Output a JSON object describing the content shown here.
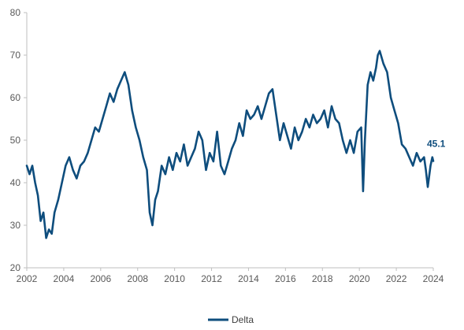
{
  "chart_data": {
    "type": "line",
    "title": "",
    "xlabel": "",
    "ylabel": "",
    "xlim": [
      2002,
      2024
    ],
    "ylim": [
      20,
      80
    ],
    "x_ticks": [
      "2002",
      "2004",
      "2006",
      "2008",
      "2010",
      "2012",
      "2014",
      "2016",
      "2018",
      "2020",
      "2022",
      "2024"
    ],
    "y_ticks": [
      "20",
      "30",
      "40",
      "50",
      "60",
      "70",
      "80"
    ],
    "grid": false,
    "legend": {
      "position": "bottom",
      "entries": [
        "Delta"
      ]
    },
    "end_label": "45.1",
    "series": [
      {
        "name": "Delta",
        "color": "#0e4d7d",
        "x": [
          2002.0,
          2002.15,
          2002.3,
          2002.45,
          2002.6,
          2002.75,
          2002.9,
          2003.05,
          2003.2,
          2003.35,
          2003.5,
          2003.7,
          2003.9,
          2004.1,
          2004.3,
          2004.5,
          2004.7,
          2004.9,
          2005.1,
          2005.3,
          2005.5,
          2005.7,
          2005.9,
          2006.1,
          2006.3,
          2006.5,
          2006.7,
          2006.9,
          2007.1,
          2007.3,
          2007.5,
          2007.7,
          2007.9,
          2008.1,
          2008.3,
          2008.5,
          2008.65,
          2008.8,
          2008.95,
          2009.1,
          2009.3,
          2009.5,
          2009.7,
          2009.9,
          2010.1,
          2010.3,
          2010.5,
          2010.7,
          2010.9,
          2011.1,
          2011.3,
          2011.5,
          2011.7,
          2011.9,
          2012.1,
          2012.3,
          2012.5,
          2012.7,
          2012.9,
          2013.1,
          2013.3,
          2013.5,
          2013.7,
          2013.9,
          2014.1,
          2014.3,
          2014.5,
          2014.7,
          2014.9,
          2015.1,
          2015.3,
          2015.5,
          2015.7,
          2015.9,
          2016.1,
          2016.3,
          2016.5,
          2016.7,
          2016.9,
          2017.1,
          2017.3,
          2017.5,
          2017.7,
          2017.9,
          2018.1,
          2018.3,
          2018.5,
          2018.7,
          2018.9,
          2019.1,
          2019.3,
          2019.5,
          2019.7,
          2019.9,
          2020.1,
          2020.2,
          2020.3,
          2020.45,
          2020.6,
          2020.75,
          2020.9,
          2021.0,
          2021.1,
          2021.3,
          2021.5,
          2021.7,
          2021.9,
          2022.1,
          2022.3,
          2022.5,
          2022.7,
          2022.9,
          2023.1,
          2023.3,
          2023.5,
          2023.6,
          2023.7,
          2023.85,
          2023.95,
          2024.0
        ],
        "values": [
          44,
          42,
          44,
          40,
          37,
          31,
          33,
          27,
          29,
          28,
          33,
          36,
          40,
          44,
          46,
          43,
          41,
          44,
          45,
          47,
          50,
          53,
          52,
          55,
          58,
          61,
          59,
          62,
          64,
          66,
          63,
          57,
          53,
          50,
          46,
          43,
          33,
          30,
          36,
          38,
          44,
          42,
          46,
          43,
          47,
          45,
          49,
          44,
          46,
          48,
          52,
          50,
          43,
          47,
          45,
          52,
          44,
          42,
          45,
          48,
          50,
          54,
          51,
          57,
          55,
          56,
          58,
          55,
          58,
          61,
          62,
          56,
          50,
          54,
          51,
          48,
          53,
          50,
          52,
          55,
          53,
          56,
          54,
          55,
          57,
          53,
          58,
          55,
          54,
          50,
          47,
          50,
          47,
          52,
          53,
          38,
          50,
          63,
          66,
          64,
          67,
          70,
          71,
          68,
          66,
          60,
          57,
          54,
          49,
          48,
          46,
          44,
          47,
          45,
          46,
          43,
          39,
          44,
          46,
          45.1
        ]
      }
    ]
  }
}
